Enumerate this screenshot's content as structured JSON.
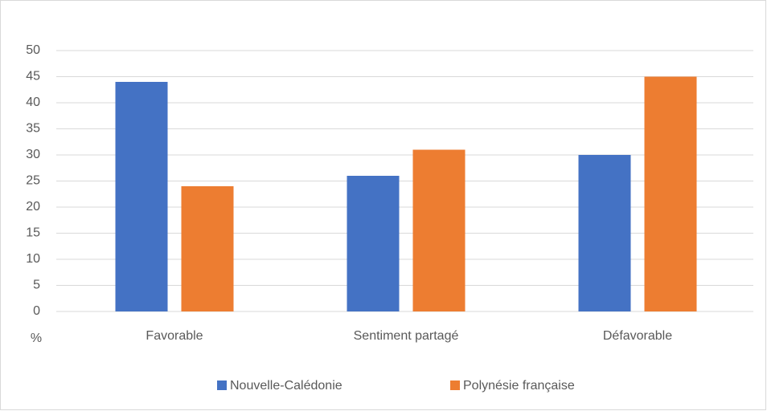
{
  "chart_data": {
    "type": "bar",
    "y_label": "%",
    "categories": [
      "Favorable",
      "Sentiment partagé",
      "Défavorable"
    ],
    "series": [
      {
        "name": "Nouvelle-Calédonie",
        "color": "#4472c4",
        "values": [
          44,
          26,
          30
        ]
      },
      {
        "name": "Polynésie française",
        "color": "#ed7d31",
        "values": [
          24,
          31,
          45
        ]
      }
    ],
    "ylim": [
      0,
      50
    ],
    "yticks": [
      0,
      5,
      10,
      15,
      20,
      25,
      30,
      35,
      40,
      45,
      50
    ],
    "grid": true,
    "legend": "bottom"
  }
}
